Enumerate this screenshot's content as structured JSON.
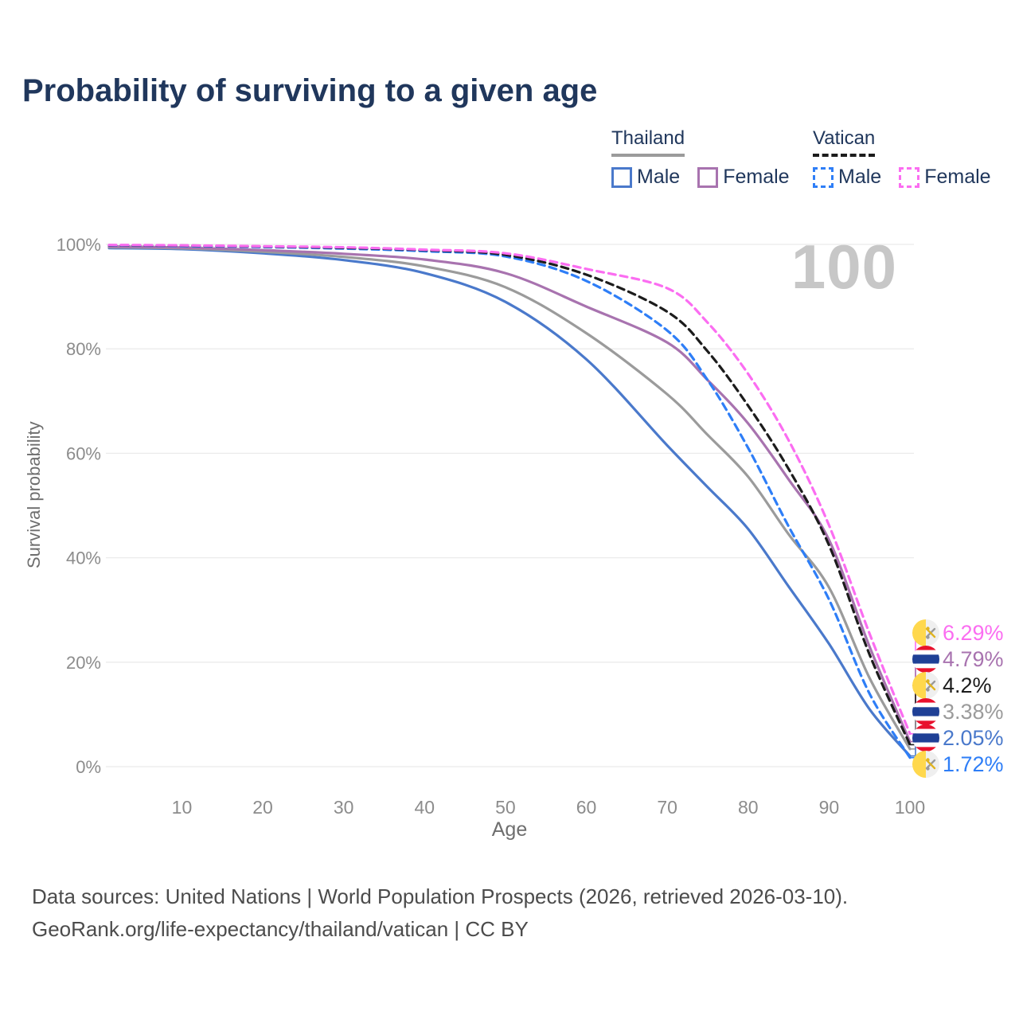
{
  "title": "Probability of surviving to a given age",
  "legend": {
    "groups": [
      {
        "label": "Thailand",
        "line_color": "#9b9b9b",
        "line_style": "solid",
        "items": [
          {
            "label": "Male",
            "color": "#4a79cb",
            "style": "solid"
          },
          {
            "label": "Female",
            "color": "#a873af",
            "style": "solid"
          }
        ]
      },
      {
        "label": "Vatican",
        "line_color": "#1c1c1c",
        "line_style": "dashed",
        "items": [
          {
            "label": "Male",
            "color": "#2e7ef7",
            "style": "dashed"
          },
          {
            "label": "Female",
            "color": "#fb6df1",
            "style": "dashed"
          }
        ]
      }
    ]
  },
  "chart_data": {
    "type": "line",
    "title": "Probability of surviving to a given age",
    "xlabel": "Age",
    "ylabel": "Survival probability",
    "watermark": "100",
    "xlim": [
      1,
      100
    ],
    "ylim_pct": [
      0,
      100
    ],
    "x_ticks": [
      10,
      20,
      30,
      40,
      50,
      60,
      70,
      80,
      90,
      100
    ],
    "y_ticks_pct": [
      0,
      20,
      40,
      60,
      80,
      100
    ],
    "grid": "horizontal",
    "legend_position": "top-right",
    "ages": [
      1,
      10,
      20,
      30,
      40,
      50,
      60,
      70,
      75,
      80,
      85,
      90,
      95,
      100
    ],
    "series": [
      {
        "id": "thailand-male",
        "name": "Thailand Male",
        "color": "#4a79cb",
        "dash": "solid",
        "flag": "thailand",
        "end_label": "2.05%",
        "values_pct": [
          99.3,
          99.1,
          98.3,
          97.0,
          94.5,
          89.0,
          78.0,
          61.5,
          53.5,
          45.5,
          34.5,
          23.5,
          11.0,
          2.05
        ]
      },
      {
        "id": "thailand-total",
        "name": "Thailand",
        "color": "#9b9b9b",
        "dash": "solid",
        "flag": "thailand",
        "end_label": "3.38%",
        "values_pct": [
          99.45,
          99.25,
          98.6,
          97.6,
          95.8,
          91.8,
          83.0,
          71.3,
          63.5,
          55.5,
          44.5,
          34.3,
          17.0,
          3.38
        ]
      },
      {
        "id": "thailand-female",
        "name": "Thailand Female",
        "color": "#a873af",
        "dash": "solid",
        "flag": "thailand",
        "end_label": "4.79%",
        "values_pct": [
          99.6,
          99.4,
          98.9,
          98.2,
          97.1,
          94.5,
          88.1,
          81.2,
          74.0,
          65.7,
          55.0,
          43.4,
          23.0,
          4.79
        ]
      },
      {
        "id": "vatican-male",
        "name": "Vatican Male",
        "color": "#2e7ef7",
        "dash": "dashed",
        "flag": "vatican",
        "end_label": "1.72%",
        "values_pct": [
          99.8,
          99.7,
          99.5,
          99.2,
          98.7,
          97.7,
          93.0,
          83.5,
          74.0,
          61.0,
          46.0,
          32.0,
          14.0,
          1.72
        ]
      },
      {
        "id": "vatican-total",
        "name": "Vatican",
        "color": "#1c1c1c",
        "dash": "dashed",
        "flag": "vatican",
        "end_label": "4.2%",
        "values_pct": [
          99.85,
          99.78,
          99.6,
          99.35,
          98.9,
          98.0,
          94.2,
          87.1,
          79.5,
          69.1,
          57.0,
          42.4,
          21.5,
          4.2
        ]
      },
      {
        "id": "vatican-female",
        "name": "Vatican Female",
        "color": "#fb6df1",
        "dash": "dashed",
        "flag": "vatican",
        "end_label": "6.29%",
        "values_pct": [
          99.9,
          99.82,
          99.65,
          99.45,
          99.0,
          98.3,
          95.3,
          91.6,
          85.0,
          75.2,
          62.5,
          46.2,
          25.5,
          6.29
        ]
      }
    ],
    "flag_colors": {
      "thailand": {
        "red": "#e8112d",
        "white": "#ffffff",
        "blue": "#1f4096"
      },
      "vatican": {
        "yellow": "#ffd84d",
        "white": "#efefef",
        "key_gray": "#9a9a9a",
        "key_gold": "#e0b420"
      }
    }
  },
  "footer": {
    "line1": "Data sources: United Nations | World Population Prospects (2026, retrieved 2026-03-10).",
    "line2": "GeoRank.org/life-expectancy/thailand/vatican | CC BY"
  }
}
